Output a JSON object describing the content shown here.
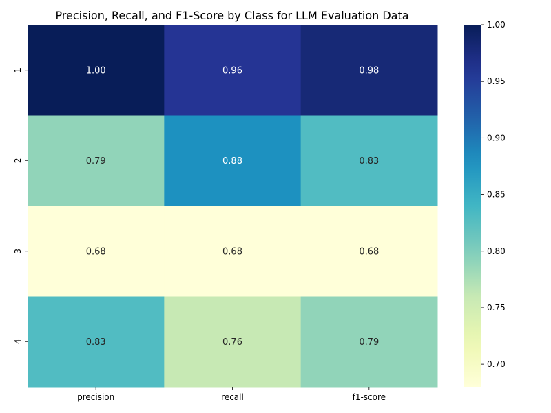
{
  "chart_data": {
    "type": "heatmap",
    "title": "Precision, Recall, and F1-Score by Class for LLM Evaluation Data",
    "xlabel": "",
    "ylabel": "",
    "columns": [
      "precision",
      "recall",
      "f1-score"
    ],
    "rows": [
      "1",
      "2",
      "3",
      "4"
    ],
    "values": [
      [
        1.0,
        0.96,
        0.98
      ],
      [
        0.79,
        0.88,
        0.83
      ],
      [
        0.68,
        0.68,
        0.68
      ],
      [
        0.83,
        0.76,
        0.79
      ]
    ],
    "value_format": "0.00",
    "colormap": "YlGnBu",
    "vmin": 0.68,
    "vmax": 1.0,
    "colorbar_ticks": [
      "0.70",
      "0.75",
      "0.80",
      "0.85",
      "0.90",
      "0.95",
      "1.00"
    ],
    "grid": false,
    "colors": {
      "low": "#ffffd9",
      "high": "#081d58"
    }
  }
}
